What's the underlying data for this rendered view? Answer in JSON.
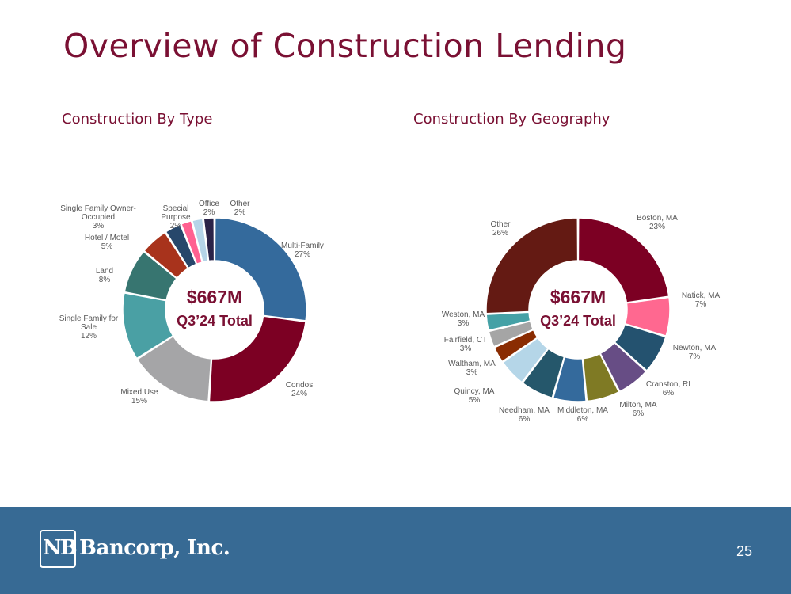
{
  "title": "Overview of Construction Lending",
  "page_number": "25",
  "logo": {
    "mark": "NB",
    "name": "Bancorp, Inc."
  },
  "chart_data": [
    {
      "type": "pie",
      "donut": true,
      "title": "Construction By Type",
      "center_value": "$667M",
      "center_label": "Q3’24 Total",
      "slices": [
        {
          "label": "Multi-Family",
          "pct": "27%",
          "value": 27,
          "color": "#346a9c"
        },
        {
          "label": "Condos",
          "pct": "24%",
          "value": 24,
          "color": "#7c0023"
        },
        {
          "label": "Mixed Use",
          "pct": "15%",
          "value": 15,
          "color": "#a5a5a7"
        },
        {
          "label": "Single Family for Sale",
          "pct": "12%",
          "value": 12,
          "color": "#4aa0a4"
        },
        {
          "label": "Land",
          "pct": "8%",
          "value": 8,
          "color": "#377570"
        },
        {
          "label": "Hotel / Motel",
          "pct": "5%",
          "value": 5,
          "color": "#a8331c"
        },
        {
          "label": "Single Family Owner-Occupied",
          "pct": "3%",
          "value": 3,
          "color": "#27476b"
        },
        {
          "label": "Special Purpose",
          "pct": "2%",
          "value": 2,
          "color": "#ff6090"
        },
        {
          "label": "Office",
          "pct": "2%",
          "value": 2,
          "color": "#b5d4e8"
        },
        {
          "label": "Other",
          "pct": "2%",
          "value": 2,
          "color": "#2a2348"
        }
      ]
    },
    {
      "type": "pie",
      "donut": true,
      "title": "Construction By Geography",
      "center_value": "$667M",
      "center_label": "Q3’24 Total",
      "slices": [
        {
          "label": "Boston, MA",
          "pct": "23%",
          "value": 23,
          "color": "#7c0023"
        },
        {
          "label": "Natick, MA",
          "pct": "7%",
          "value": 7,
          "color": "#ff6890"
        },
        {
          "label": "Newton, MA",
          "pct": "7%",
          "value": 7,
          "color": "#24526f"
        },
        {
          "label": "Cranston, RI",
          "pct": "6%",
          "value": 6,
          "color": "#674d85"
        },
        {
          "label": "Milton, MA",
          "pct": "6%",
          "value": 6,
          "color": "#7f7a24"
        },
        {
          "label": "Middleton, MA",
          "pct": "6%",
          "value": 6,
          "color": "#346a9c"
        },
        {
          "label": "Needham, MA",
          "pct": "6%",
          "value": 6,
          "color": "#25576b"
        },
        {
          "label": "Quincy, MA",
          "pct": "5%",
          "value": 5,
          "color": "#b5d6e8"
        },
        {
          "label": "Waltham, MA",
          "pct": "3%",
          "value": 3,
          "color": "#8a2c02"
        },
        {
          "label": "Fairfield, CT",
          "pct": "3%",
          "value": 3,
          "color": "#a5a5a5"
        },
        {
          "label": "Weston, MA",
          "pct": "3%",
          "value": 3,
          "color": "#45a1a6"
        },
        {
          "label": "Other",
          "pct": "26%",
          "value": 26,
          "color": "#641a13"
        }
      ]
    }
  ]
}
